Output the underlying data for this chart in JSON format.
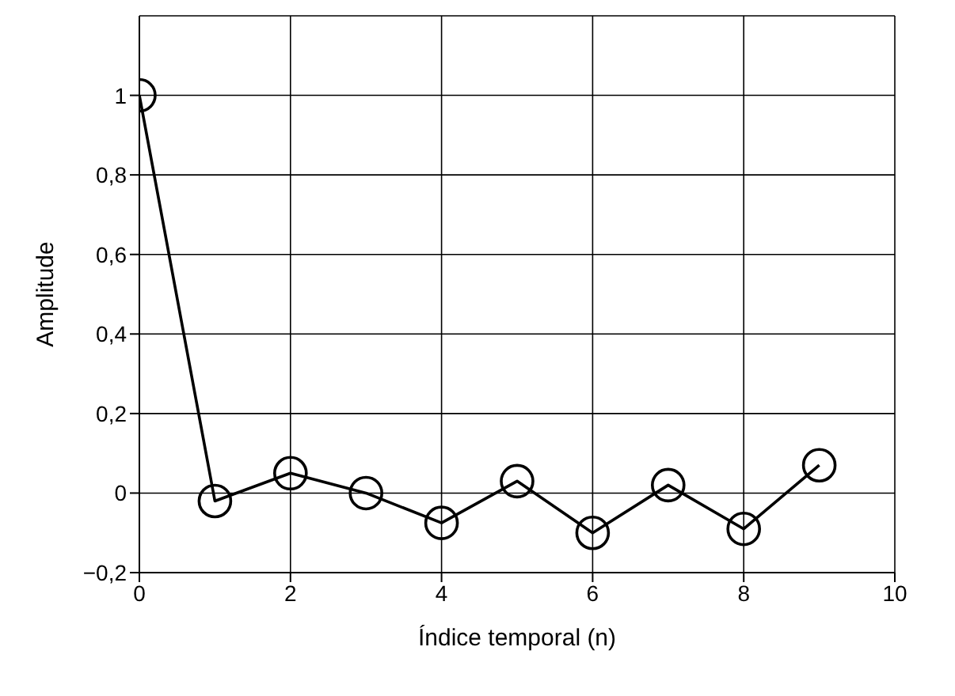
{
  "chart_data": {
    "type": "line",
    "xlabel": "Índice temporal (n)",
    "ylabel": "Amplitude",
    "x": [
      0,
      1,
      2,
      3,
      4,
      5,
      6,
      7,
      8,
      9
    ],
    "series": [
      {
        "color": "#000000",
        "values": [
          1,
          -0.02,
          0.05,
          0,
          -0.075,
          0.03,
          -0.1,
          0.02,
          -0.09,
          0.07
        ]
      }
    ],
    "xlim": [
      0,
      10
    ],
    "xticks": [
      0,
      2,
      4,
      6,
      8,
      10
    ],
    "ylim": [
      -0.2,
      1.2
    ],
    "yticks": [
      {
        "value": -0.2,
        "label": "−0,2"
      },
      0,
      {
        "value": 0.2,
        "label": "0,2"
      },
      {
        "value": 0.4,
        "label": "0,4"
      },
      {
        "value": 0.6,
        "label": "0,6"
      },
      {
        "value": 0.8,
        "label": "0,8"
      },
      1
    ],
    "grid": true,
    "marker": "circle",
    "line_style": "solid",
    "legend": false
  }
}
